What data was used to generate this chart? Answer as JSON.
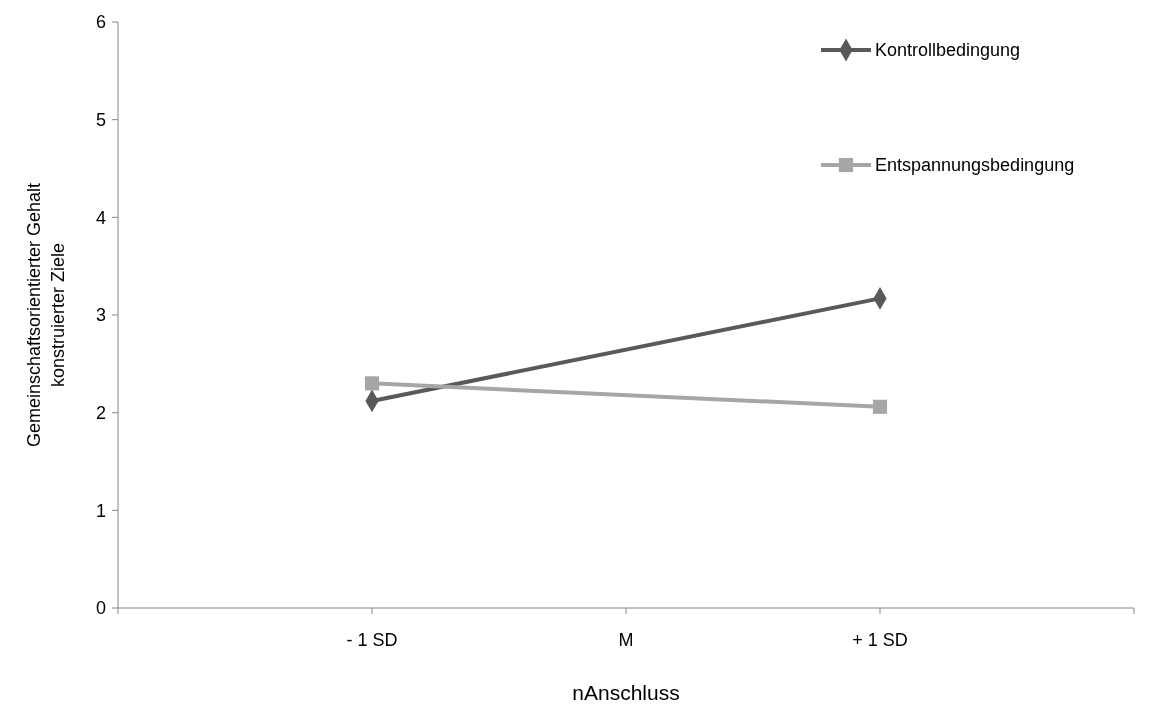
{
  "chart_data": {
    "type": "line",
    "xlabel": "nAnschluss",
    "ylabel": "Gemeinschaftsorientierter Gehalt\nkonstruierter Ziele",
    "x": [
      -1,
      1
    ],
    "xlim": [
      -2,
      2
    ],
    "xticks": [
      {
        "value": -2,
        "label": null
      },
      {
        "value": -1,
        "label": "- 1 SD"
      },
      {
        "value": 0,
        "label": "M"
      },
      {
        "value": 1,
        "label": "+ 1 SD"
      },
      {
        "value": 2,
        "label": null
      }
    ],
    "ylim": [
      0,
      6
    ],
    "yticks": [
      0,
      1,
      2,
      3,
      4,
      5,
      6
    ],
    "legend": "top right",
    "grid": false,
    "line_style": "solid",
    "series": [
      {
        "name": "Kontrollbedingung",
        "color": "#595959",
        "marker": "diamond",
        "values": [
          2.12,
          3.17
        ]
      },
      {
        "name": "Entspannungsbedingung",
        "color": "#a6a6a6",
        "marker": "square",
        "values": [
          2.3,
          2.06
        ]
      }
    ]
  }
}
